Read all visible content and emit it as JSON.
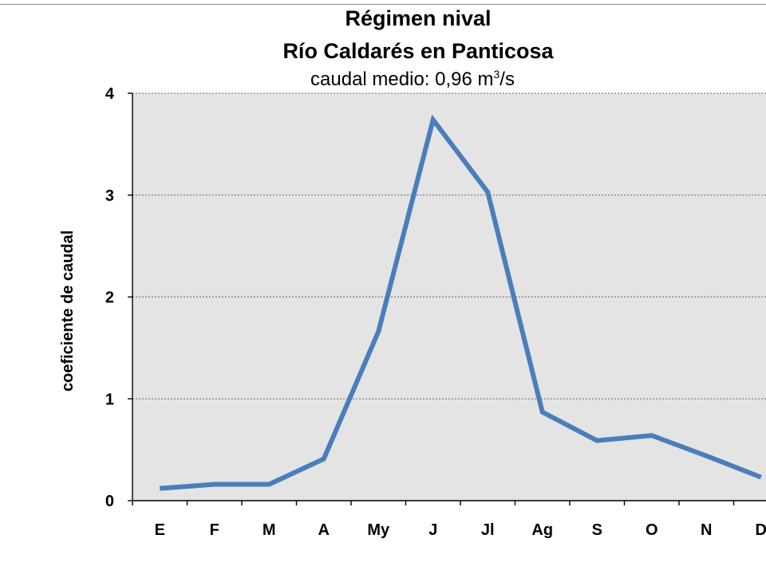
{
  "chart_data": {
    "type": "line",
    "title": "Régimen nival",
    "title_line2": "Río Caldarés en Panticosa",
    "subtitle": {
      "prefix": "caudal medio:  0,96 m",
      "sup": "3",
      "suffix": "/s"
    },
    "xlabel": "",
    "ylabel": "coeficiente de caudal",
    "categories": [
      "E",
      "F",
      "M",
      "A",
      "My",
      "J",
      "Jl",
      "Ag",
      "S",
      "O",
      "N",
      "D"
    ],
    "series": [
      {
        "values": [
          0.12,
          0.16,
          0.16,
          0.41,
          1.66,
          3.74,
          3.03,
          0.87,
          0.59,
          0.64,
          0.44,
          0.23
        ]
      }
    ],
    "ylim": [
      0,
      4
    ],
    "yticks": [
      0,
      1,
      2,
      3,
      4
    ],
    "ytick_labels": [
      "0",
      "1",
      "2",
      "3",
      "4"
    ],
    "grid": "horizontal dotted",
    "legend": "none",
    "colors": {
      "line": "#4a7ebb",
      "plot_background": "#e4e4e4",
      "axis": "#000000",
      "grid": "#666666"
    }
  }
}
